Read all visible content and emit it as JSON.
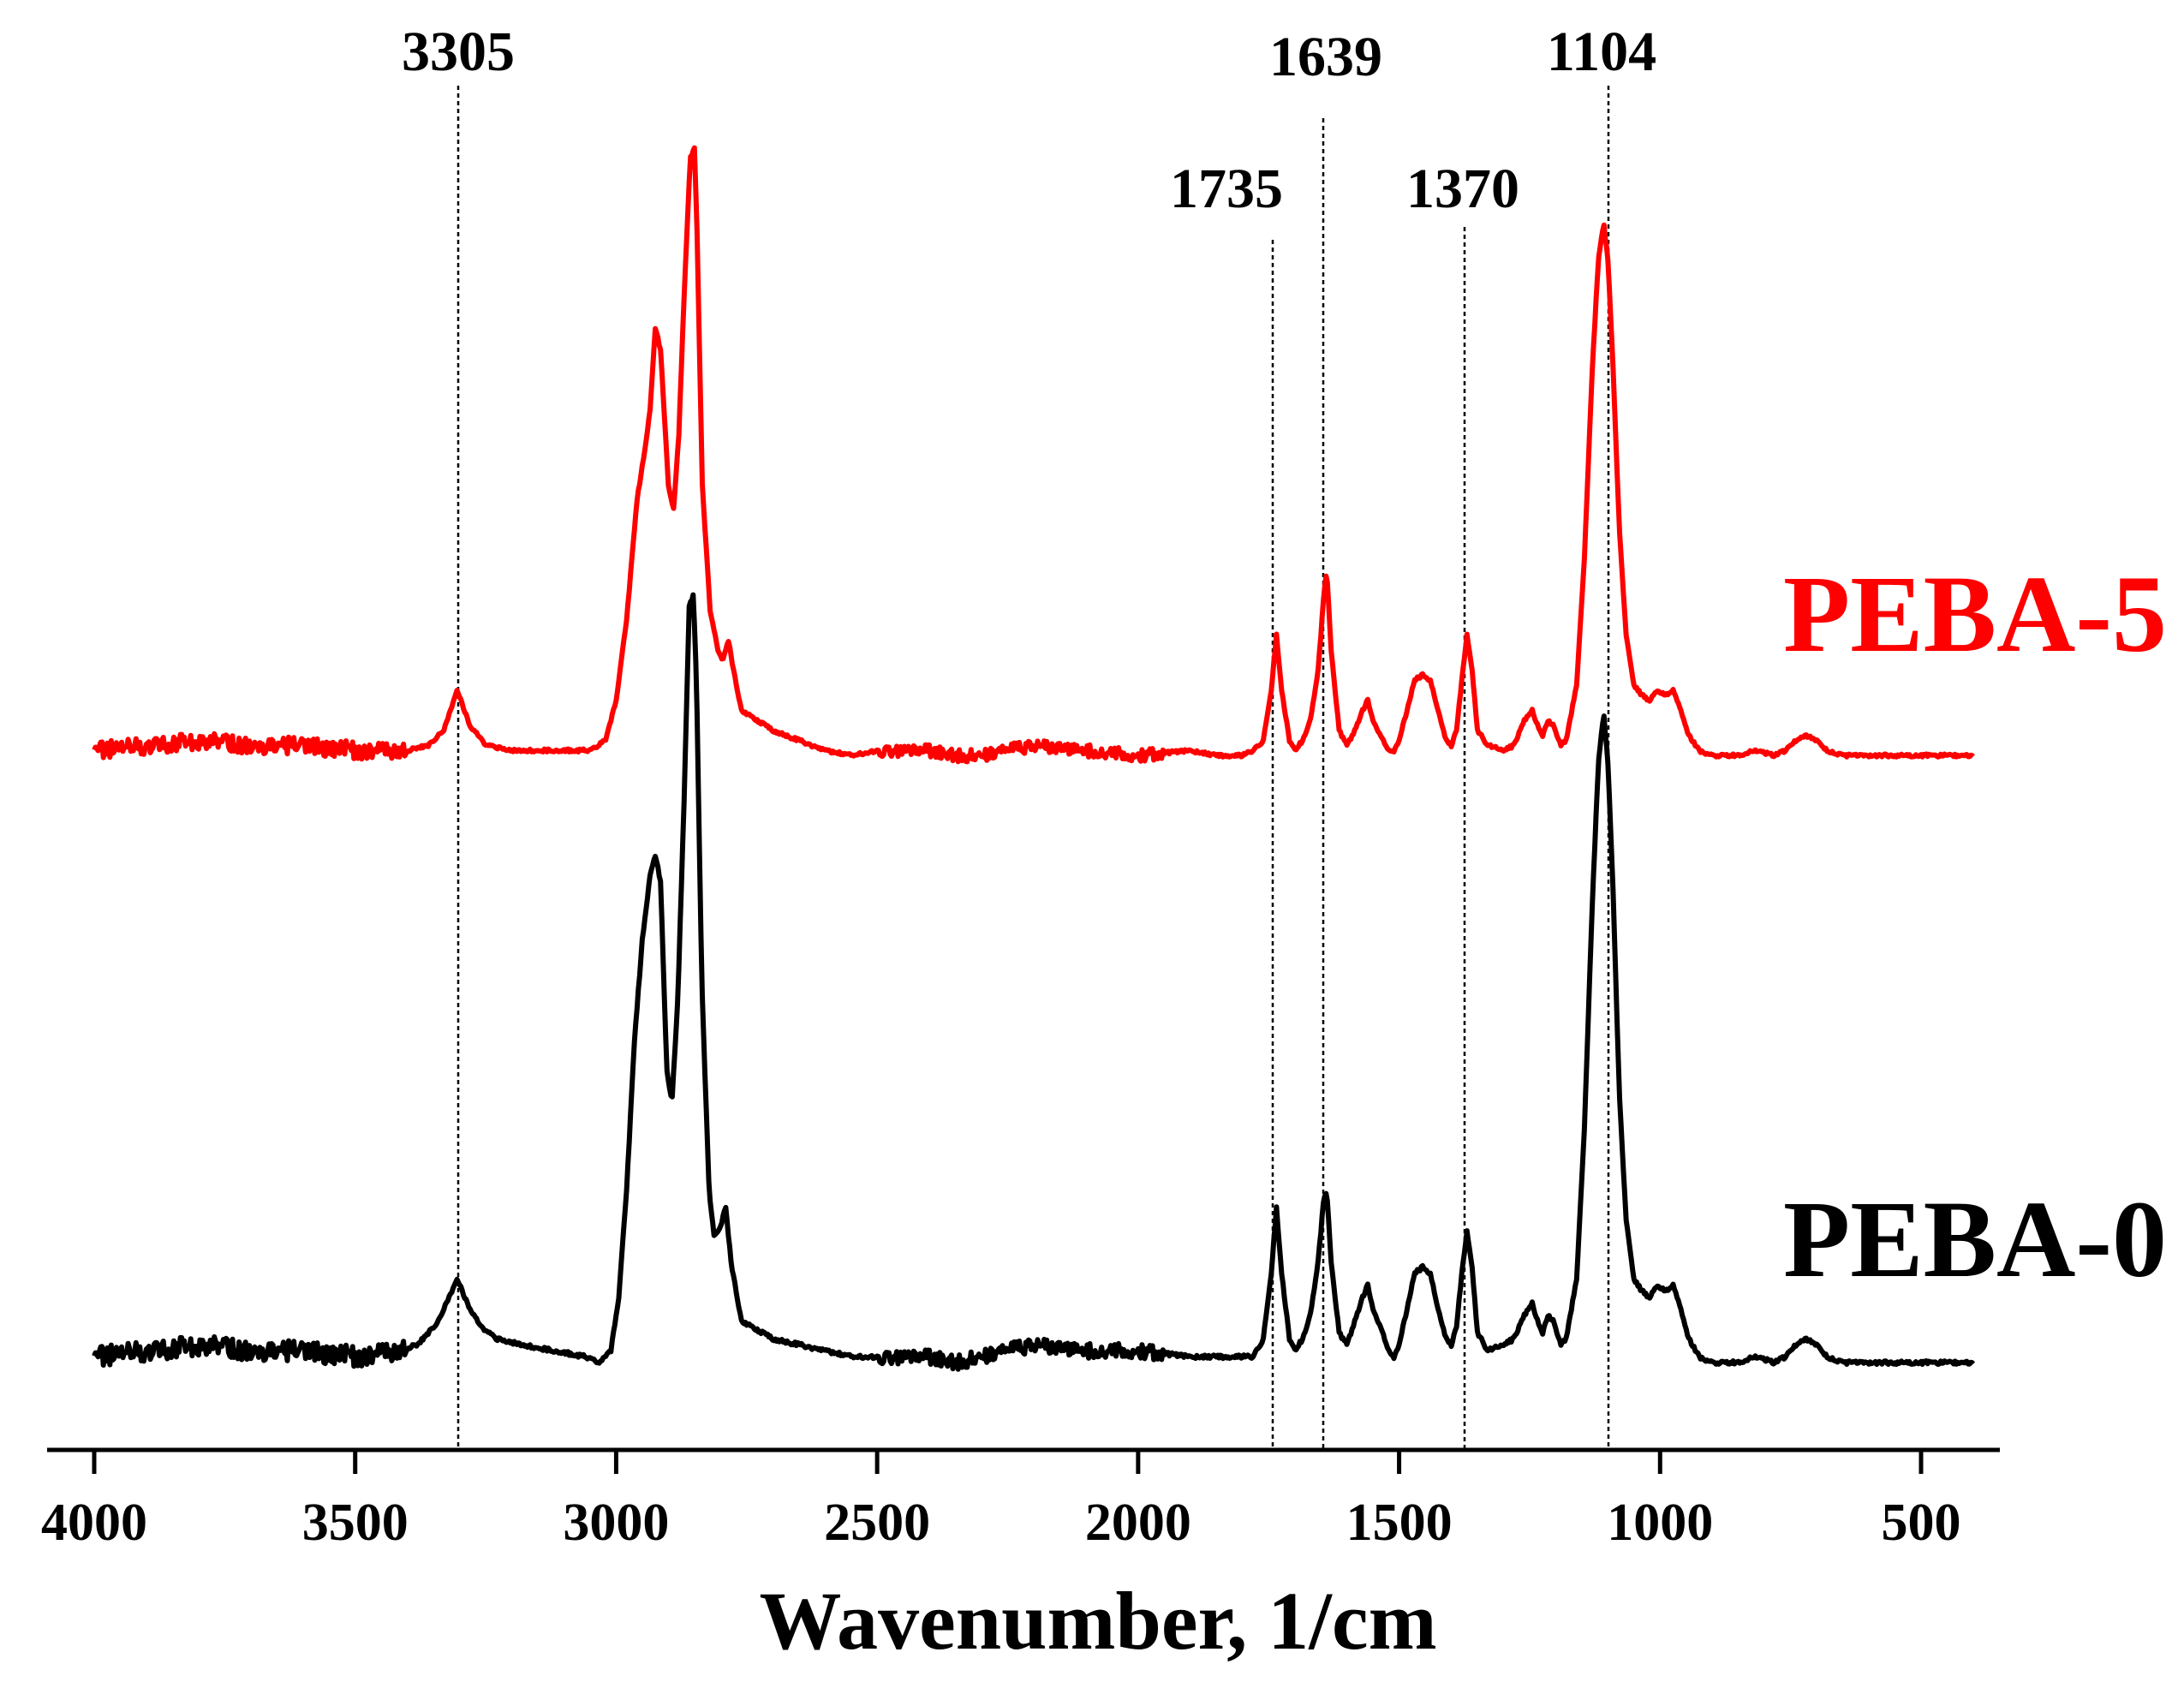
{
  "chart_data": {
    "type": "line",
    "title": "",
    "xlabel": "Wavenumber, 1/cm",
    "ylabel": "",
    "xlim": [
      4000,
      400
    ],
    "x_reversed": true,
    "xticks": [
      4000,
      3500,
      3000,
      2500,
      2000,
      1500,
      1000,
      500
    ],
    "grid": false,
    "y_axis_shown": false,
    "annotations": [
      {
        "label": "3305",
        "x": 3305
      },
      {
        "label": "1735",
        "x": 1735
      },
      {
        "label": "1639",
        "x": 1639
      },
      {
        "label": "1370",
        "x": 1370
      },
      {
        "label": "1104",
        "x": 1104
      }
    ],
    "series": [
      {
        "name": "PEBA-5",
        "color": "#ff0000",
        "offset": 1.0,
        "points": [
          [
            4000,
            0.02
          ],
          [
            3900,
            0.03
          ],
          [
            3800,
            0.04
          ],
          [
            3700,
            0.03
          ],
          [
            3600,
            0.03
          ],
          [
            3500,
            0.02
          ],
          [
            3400,
            0.02
          ],
          [
            3360,
            0.03
          ],
          [
            3330,
            0.06
          ],
          [
            3305,
            0.14
          ],
          [
            3280,
            0.07
          ],
          [
            3250,
            0.03
          ],
          [
            3200,
            0.02
          ],
          [
            3150,
            0.02
          ],
          [
            3100,
            0.02
          ],
          [
            3050,
            0.02
          ],
          [
            3020,
            0.04
          ],
          [
            3000,
            0.12
          ],
          [
            2980,
            0.28
          ],
          [
            2960,
            0.52
          ],
          [
            2945,
            0.62
          ],
          [
            2935,
            0.7
          ],
          [
            2925,
            0.86
          ],
          [
            2915,
            0.82
          ],
          [
            2900,
            0.55
          ],
          [
            2890,
            0.5
          ],
          [
            2880,
            0.65
          ],
          [
            2870,
            0.92
          ],
          [
            2858,
            1.2
          ],
          [
            2850,
            1.22
          ],
          [
            2845,
            1.05
          ],
          [
            2835,
            0.55
          ],
          [
            2820,
            0.3
          ],
          [
            2805,
            0.22
          ],
          [
            2795,
            0.2
          ],
          [
            2785,
            0.24
          ],
          [
            2775,
            0.18
          ],
          [
            2760,
            0.1
          ],
          [
            2700,
            0.06
          ],
          [
            2650,
            0.04
          ],
          [
            2600,
            0.02
          ],
          [
            2550,
            0.01
          ],
          [
            2500,
            0.02
          ],
          [
            2400,
            0.02
          ],
          [
            2350,
            0.01
          ],
          [
            2300,
            0.01
          ],
          [
            2200,
            0.03
          ],
          [
            2100,
            0.02
          ],
          [
            2000,
            0.01
          ],
          [
            1900,
            0.02
          ],
          [
            1850,
            0.01
          ],
          [
            1800,
            0.01
          ],
          [
            1780,
            0.02
          ],
          [
            1760,
            0.04
          ],
          [
            1745,
            0.14
          ],
          [
            1735,
            0.25
          ],
          [
            1725,
            0.14
          ],
          [
            1710,
            0.04
          ],
          [
            1700,
            0.02
          ],
          [
            1685,
            0.04
          ],
          [
            1670,
            0.08
          ],
          [
            1655,
            0.18
          ],
          [
            1645,
            0.32
          ],
          [
            1639,
            0.38
          ],
          [
            1630,
            0.22
          ],
          [
            1615,
            0.06
          ],
          [
            1600,
            0.03
          ],
          [
            1585,
            0.06
          ],
          [
            1570,
            0.1
          ],
          [
            1560,
            0.12
          ],
          [
            1550,
            0.08
          ],
          [
            1535,
            0.05
          ],
          [
            1520,
            0.02
          ],
          [
            1510,
            0.02
          ],
          [
            1500,
            0.04
          ],
          [
            1485,
            0.1
          ],
          [
            1470,
            0.16
          ],
          [
            1455,
            0.17
          ],
          [
            1440,
            0.16
          ],
          [
            1425,
            0.1
          ],
          [
            1410,
            0.04
          ],
          [
            1400,
            0.03
          ],
          [
            1390,
            0.06
          ],
          [
            1380,
            0.16
          ],
          [
            1370,
            0.25
          ],
          [
            1360,
            0.18
          ],
          [
            1350,
            0.06
          ],
          [
            1330,
            0.03
          ],
          [
            1300,
            0.02
          ],
          [
            1280,
            0.03
          ],
          [
            1260,
            0.08
          ],
          [
            1245,
            0.1
          ],
          [
            1235,
            0.07
          ],
          [
            1225,
            0.05
          ],
          [
            1215,
            0.08
          ],
          [
            1205,
            0.07
          ],
          [
            1190,
            0.03
          ],
          [
            1180,
            0.04
          ],
          [
            1160,
            0.15
          ],
          [
            1145,
            0.4
          ],
          [
            1130,
            0.78
          ],
          [
            1118,
            1.0
          ],
          [
            1108,
            1.07
          ],
          [
            1100,
            1.0
          ],
          [
            1090,
            0.78
          ],
          [
            1078,
            0.46
          ],
          [
            1065,
            0.25
          ],
          [
            1050,
            0.15
          ],
          [
            1035,
            0.13
          ],
          [
            1020,
            0.12
          ],
          [
            1005,
            0.14
          ],
          [
            990,
            0.13
          ],
          [
            975,
            0.14
          ],
          [
            960,
            0.1
          ],
          [
            945,
            0.05
          ],
          [
            925,
            0.02
          ],
          [
            900,
            0.01
          ],
          [
            850,
            0.01
          ],
          [
            820,
            0.02
          ],
          [
            780,
            0.01
          ],
          [
            760,
            0.02
          ],
          [
            740,
            0.04
          ],
          [
            720,
            0.05
          ],
          [
            700,
            0.04
          ],
          [
            680,
            0.02
          ],
          [
            650,
            0.01
          ],
          [
            600,
            0.01
          ],
          [
            550,
            0.01
          ],
          [
            500,
            0.01
          ],
          [
            450,
            0.01
          ],
          [
            400,
            0.01
          ]
        ]
      },
      {
        "name": "PEBA-0",
        "color": "#000000",
        "offset": 0.0,
        "points": [
          [
            4000,
            0.02
          ],
          [
            3900,
            0.03
          ],
          [
            3800,
            0.04
          ],
          [
            3700,
            0.03
          ],
          [
            3600,
            0.03
          ],
          [
            3500,
            0.02
          ],
          [
            3420,
            0.03
          ],
          [
            3380,
            0.04
          ],
          [
            3340,
            0.08
          ],
          [
            3320,
            0.12
          ],
          [
            3305,
            0.15
          ],
          [
            3285,
            0.11
          ],
          [
            3260,
            0.07
          ],
          [
            3230,
            0.05
          ],
          [
            3180,
            0.04
          ],
          [
            3120,
            0.03
          ],
          [
            3060,
            0.02
          ],
          [
            3030,
            0.01
          ],
          [
            3010,
            0.03
          ],
          [
            2995,
            0.12
          ],
          [
            2980,
            0.3
          ],
          [
            2965,
            0.55
          ],
          [
            2950,
            0.72
          ],
          [
            2935,
            0.83
          ],
          [
            2925,
            0.86
          ],
          [
            2915,
            0.82
          ],
          [
            2903,
            0.5
          ],
          [
            2893,
            0.45
          ],
          [
            2882,
            0.62
          ],
          [
            2870,
            0.95
          ],
          [
            2860,
            1.28
          ],
          [
            2852,
            1.3
          ],
          [
            2846,
            1.15
          ],
          [
            2836,
            0.65
          ],
          [
            2822,
            0.3
          ],
          [
            2812,
            0.22
          ],
          [
            2800,
            0.24
          ],
          [
            2790,
            0.27
          ],
          [
            2780,
            0.18
          ],
          [
            2760,
            0.08
          ],
          [
            2700,
            0.05
          ],
          [
            2650,
            0.04
          ],
          [
            2600,
            0.03
          ],
          [
            2550,
            0.02
          ],
          [
            2500,
            0.02
          ],
          [
            2400,
            0.02
          ],
          [
            2350,
            0.01
          ],
          [
            2300,
            0.02
          ],
          [
            2200,
            0.04
          ],
          [
            2100,
            0.03
          ],
          [
            2000,
            0.03
          ],
          [
            1900,
            0.02
          ],
          [
            1850,
            0.02
          ],
          [
            1800,
            0.02
          ],
          [
            1780,
            0.02
          ],
          [
            1760,
            0.05
          ],
          [
            1745,
            0.16
          ],
          [
            1735,
            0.27
          ],
          [
            1725,
            0.16
          ],
          [
            1710,
            0.05
          ],
          [
            1700,
            0.03
          ],
          [
            1685,
            0.05
          ],
          [
            1670,
            0.09
          ],
          [
            1655,
            0.18
          ],
          [
            1645,
            0.28
          ],
          [
            1639,
            0.3
          ],
          [
            1630,
            0.18
          ],
          [
            1615,
            0.06
          ],
          [
            1600,
            0.04
          ],
          [
            1585,
            0.08
          ],
          [
            1570,
            0.12
          ],
          [
            1560,
            0.14
          ],
          [
            1550,
            0.1
          ],
          [
            1535,
            0.07
          ],
          [
            1520,
            0.03
          ],
          [
            1510,
            0.02
          ],
          [
            1500,
            0.04
          ],
          [
            1485,
            0.1
          ],
          [
            1470,
            0.16
          ],
          [
            1455,
            0.17
          ],
          [
            1440,
            0.16
          ],
          [
            1425,
            0.1
          ],
          [
            1410,
            0.05
          ],
          [
            1400,
            0.04
          ],
          [
            1390,
            0.07
          ],
          [
            1380,
            0.16
          ],
          [
            1370,
            0.23
          ],
          [
            1360,
            0.17
          ],
          [
            1350,
            0.06
          ],
          [
            1330,
            0.03
          ],
          [
            1300,
            0.04
          ],
          [
            1280,
            0.05
          ],
          [
            1260,
            0.09
          ],
          [
            1245,
            0.11
          ],
          [
            1235,
            0.08
          ],
          [
            1225,
            0.06
          ],
          [
            1215,
            0.09
          ],
          [
            1205,
            0.08
          ],
          [
            1190,
            0.04
          ],
          [
            1180,
            0.05
          ],
          [
            1160,
            0.15
          ],
          [
            1145,
            0.4
          ],
          [
            1130,
            0.78
          ],
          [
            1118,
            1.02
          ],
          [
            1108,
            1.1
          ],
          [
            1100,
            1.02
          ],
          [
            1090,
            0.8
          ],
          [
            1078,
            0.46
          ],
          [
            1065,
            0.25
          ],
          [
            1050,
            0.15
          ],
          [
            1035,
            0.13
          ],
          [
            1020,
            0.12
          ],
          [
            1005,
            0.14
          ],
          [
            990,
            0.13
          ],
          [
            975,
            0.14
          ],
          [
            960,
            0.1
          ],
          [
            945,
            0.05
          ],
          [
            925,
            0.02
          ],
          [
            900,
            0.01
          ],
          [
            850,
            0.01
          ],
          [
            820,
            0.02
          ],
          [
            780,
            0.01
          ],
          [
            760,
            0.02
          ],
          [
            740,
            0.04
          ],
          [
            720,
            0.05
          ],
          [
            700,
            0.04
          ],
          [
            680,
            0.02
          ],
          [
            650,
            0.01
          ],
          [
            600,
            0.01
          ],
          [
            550,
            0.01
          ],
          [
            500,
            0.01
          ],
          [
            450,
            0.01
          ],
          [
            400,
            0.01
          ]
        ]
      }
    ]
  }
}
